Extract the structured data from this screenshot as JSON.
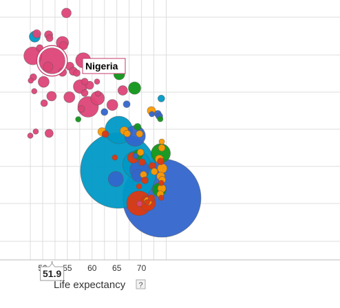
{
  "chart_data": {
    "type": "scatter",
    "title": "",
    "xlabel": "Life expectancy",
    "ylabel": "",
    "xlim": [
      44.3,
      74.2
    ],
    "x_ticks": [
      50,
      55,
      60,
      65,
      70
    ],
    "grid": true,
    "highlighted": {
      "label": "Nigeria",
      "x": 51.9
    },
    "x_readout": "51.9",
    "help_symbol": "?",
    "colors": {
      "pink": "#dd4477",
      "blue": "#3366cc",
      "teal": "#0099c6",
      "green": "#109618",
      "orange": "#ff9900",
      "red": "#dc3912"
    },
    "points": [
      {
        "x": 54.8,
        "y": 0.95,
        "r": 7,
        "c": "pink"
      },
      {
        "x": 48.4,
        "y": 0.859,
        "r": 8,
        "c": "teal"
      },
      {
        "x": 48.8,
        "y": 0.87,
        "r": 6,
        "c": "pink"
      },
      {
        "x": 51.2,
        "y": 0.866,
        "r": 6,
        "c": "pink"
      },
      {
        "x": 51.4,
        "y": 0.853,
        "r": 5,
        "c": "pink"
      },
      {
        "x": 54.0,
        "y": 0.836,
        "r": 9,
        "c": "pink"
      },
      {
        "x": 54.2,
        "y": 0.824,
        "r": 6,
        "c": "pink"
      },
      {
        "x": 49.4,
        "y": 0.815,
        "r": 5,
        "c": "pink"
      },
      {
        "x": 48.0,
        "y": 0.785,
        "r": 13,
        "c": "pink"
      },
      {
        "x": 51.9,
        "y": 0.766,
        "r": 19,
        "c": "pink"
      },
      {
        "x": 51.1,
        "y": 0.743,
        "r": 7,
        "c": "pink"
      },
      {
        "x": 58.2,
        "y": 0.768,
        "r": 11,
        "c": "pink"
      },
      {
        "x": 55.5,
        "y": 0.745,
        "r": 6,
        "c": "pink"
      },
      {
        "x": 56.2,
        "y": 0.726,
        "r": 6,
        "c": "pink"
      },
      {
        "x": 56.9,
        "y": 0.719,
        "r": 5,
        "c": "pink"
      },
      {
        "x": 54.0,
        "y": 0.722,
        "r": 6,
        "c": "pink"
      },
      {
        "x": 62.6,
        "y": 0.76,
        "r": 4,
        "c": "blue"
      },
      {
        "x": 47.6,
        "y": 0.69,
        "r": 4,
        "c": "pink"
      },
      {
        "x": 48.1,
        "y": 0.703,
        "r": 5,
        "c": "pink"
      },
      {
        "x": 50.2,
        "y": 0.685,
        "r": 8,
        "c": "pink"
      },
      {
        "x": 58.5,
        "y": 0.686,
        "r": 5,
        "c": "pink"
      },
      {
        "x": 59.5,
        "y": 0.672,
        "r": 6,
        "c": "pink"
      },
      {
        "x": 61.0,
        "y": 0.686,
        "r": 4,
        "c": "pink"
      },
      {
        "x": 65.5,
        "y": 0.714,
        "r": 8,
        "c": "green"
      },
      {
        "x": 57.6,
        "y": 0.667,
        "r": 10,
        "c": "pink"
      },
      {
        "x": 48.3,
        "y": 0.649,
        "r": 4,
        "c": "pink"
      },
      {
        "x": 51.8,
        "y": 0.63,
        "r": 7,
        "c": "pink"
      },
      {
        "x": 55.4,
        "y": 0.626,
        "r": 8,
        "c": "pink"
      },
      {
        "x": 58.5,
        "y": 0.642,
        "r": 5,
        "c": "pink"
      },
      {
        "x": 66.2,
        "y": 0.652,
        "r": 7,
        "c": "pink"
      },
      {
        "x": 68.6,
        "y": 0.661,
        "r": 9,
        "c": "green"
      },
      {
        "x": 61.1,
        "y": 0.622,
        "r": 10,
        "c": "pink"
      },
      {
        "x": 61.2,
        "y": 0.64,
        "r": 4,
        "c": "pink"
      },
      {
        "x": 50.3,
        "y": 0.603,
        "r": 5,
        "c": "pink"
      },
      {
        "x": 57.8,
        "y": 0.581,
        "r": 5,
        "c": "pink"
      },
      {
        "x": 59.2,
        "y": 0.589,
        "r": 15,
        "c": "pink"
      },
      {
        "x": 64.1,
        "y": 0.596,
        "r": 8,
        "c": "pink"
      },
      {
        "x": 67.0,
        "y": 0.599,
        "r": 5,
        "c": "blue"
      },
      {
        "x": 62.5,
        "y": 0.569,
        "r": 5,
        "c": "blue"
      },
      {
        "x": 57.2,
        "y": 0.541,
        "r": 4,
        "c": "green"
      },
      {
        "x": 72.0,
        "y": 0.574,
        "r": 6,
        "c": "orange"
      },
      {
        "x": 72.1,
        "y": 0.561,
        "r": 4,
        "c": "blue"
      },
      {
        "x": 73.3,
        "y": 0.562,
        "r": 5,
        "c": "blue"
      },
      {
        "x": 73.6,
        "y": 0.553,
        "r": 5,
        "c": "blue"
      },
      {
        "x": 73.8,
        "y": 0.542,
        "r": 4,
        "c": "green"
      },
      {
        "x": 74.0,
        "y": 0.621,
        "r": 5,
        "c": "teal"
      },
      {
        "x": 48.6,
        "y": 0.494,
        "r": 4,
        "c": "pink"
      },
      {
        "x": 47.5,
        "y": 0.478,
        "r": 4,
        "c": "pink"
      },
      {
        "x": 51.3,
        "y": 0.487,
        "r": 6,
        "c": "pink"
      },
      {
        "x": 62.0,
        "y": 0.493,
        "r": 6,
        "c": "orange"
      },
      {
        "x": 62.7,
        "y": 0.484,
        "r": 5,
        "c": "red"
      },
      {
        "x": 65.3,
        "y": 0.344,
        "r": 55,
        "c": "teal"
      },
      {
        "x": 65.4,
        "y": 0.5,
        "r": 20,
        "c": "teal"
      },
      {
        "x": 66.5,
        "y": 0.497,
        "r": 6,
        "c": "orange"
      },
      {
        "x": 67.1,
        "y": 0.486,
        "r": 5,
        "c": "orange"
      },
      {
        "x": 68.7,
        "y": 0.477,
        "r": 15,
        "c": "blue"
      },
      {
        "x": 69.6,
        "y": 0.485,
        "r": 5,
        "c": "orange"
      },
      {
        "x": 69.2,
        "y": 0.512,
        "r": 5,
        "c": "green"
      },
      {
        "x": 69.3,
        "y": 0.405,
        "r": 7,
        "c": "green"
      },
      {
        "x": 69.8,
        "y": 0.414,
        "r": 5,
        "c": "orange"
      },
      {
        "x": 68.3,
        "y": 0.393,
        "r": 8,
        "c": "red"
      },
      {
        "x": 68.8,
        "y": 0.4,
        "r": 4,
        "c": "blue"
      },
      {
        "x": 69.0,
        "y": 0.367,
        "r": 20,
        "c": "teal"
      },
      {
        "x": 69.6,
        "y": 0.347,
        "r": 14,
        "c": "blue"
      },
      {
        "x": 69.3,
        "y": 0.324,
        "r": 9,
        "c": "blue"
      },
      {
        "x": 64.6,
        "y": 0.394,
        "r": 4,
        "c": "red"
      },
      {
        "x": 64.8,
        "y": 0.311,
        "r": 11,
        "c": "blue"
      },
      {
        "x": 69.5,
        "y": 0.283,
        "r": 4,
        "c": "red"
      },
      {
        "x": 69.5,
        "y": 0.218,
        "r": 18,
        "c": "red"
      },
      {
        "x": 69.6,
        "y": 0.216,
        "r": 4,
        "c": "pink"
      },
      {
        "x": 70.1,
        "y": 0.376,
        "r": 5,
        "c": "red"
      },
      {
        "x": 70.4,
        "y": 0.328,
        "r": 5,
        "c": "orange"
      },
      {
        "x": 70.7,
        "y": 0.306,
        "r": 5,
        "c": "red"
      },
      {
        "x": 71.3,
        "y": 0.226,
        "r": 6,
        "c": "orange"
      },
      {
        "x": 71.3,
        "y": 0.218,
        "r": 11,
        "c": "red"
      },
      {
        "x": 71.1,
        "y": 0.222,
        "r": 4,
        "c": "red"
      },
      {
        "x": 72.0,
        "y": 0.238,
        "r": 5,
        "c": "red"
      },
      {
        "x": 74.1,
        "y": 0.238,
        "r": 57,
        "c": "blue"
      },
      {
        "x": 73.9,
        "y": 0.41,
        "r": 14,
        "c": "green"
      },
      {
        "x": 74.1,
        "y": 0.455,
        "r": 4,
        "c": "orange"
      },
      {
        "x": 74.1,
        "y": 0.431,
        "r": 5,
        "c": "orange"
      },
      {
        "x": 73.6,
        "y": 0.388,
        "r": 6,
        "c": "orange"
      },
      {
        "x": 73.9,
        "y": 0.379,
        "r": 5,
        "c": "red"
      },
      {
        "x": 72.2,
        "y": 0.362,
        "r": 5,
        "c": "red"
      },
      {
        "x": 72.6,
        "y": 0.34,
        "r": 5,
        "c": "orange"
      },
      {
        "x": 73.9,
        "y": 0.322,
        "r": 6,
        "c": "orange"
      },
      {
        "x": 74.2,
        "y": 0.308,
        "r": 5,
        "c": "orange"
      },
      {
        "x": 74.0,
        "y": 0.296,
        "r": 4,
        "c": "red"
      },
      {
        "x": 73.6,
        "y": 0.27,
        "r": 10,
        "c": "green"
      },
      {
        "x": 73.8,
        "y": 0.253,
        "r": 5,
        "c": "orange"
      },
      {
        "x": 74.0,
        "y": 0.239,
        "r": 4,
        "c": "red"
      },
      {
        "x": 74.1,
        "y": 0.275,
        "r": 6,
        "c": "orange"
      },
      {
        "x": 74.2,
        "y": 0.352,
        "r": 7,
        "c": "orange"
      }
    ]
  }
}
